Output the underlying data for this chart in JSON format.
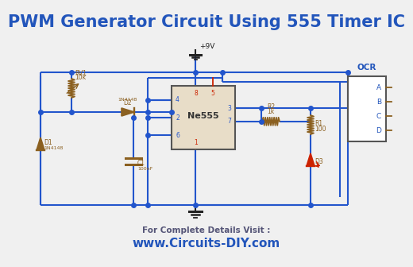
{
  "title": "PWM Generator Circuit Using 555 Timer IC",
  "title_color": "#2255bb",
  "title_fontsize": 15,
  "bg_color": "#f0f0f0",
  "wire_color": "#2255cc",
  "component_color": "#8B6020",
  "red_color": "#cc2200",
  "ocr_color": "#2255bb",
  "footer_label": "For Complete Details Visit :",
  "footer_url": "www.Circuits-DIY.com",
  "footer_color": "#555577",
  "footer_url_color": "#2255bb"
}
